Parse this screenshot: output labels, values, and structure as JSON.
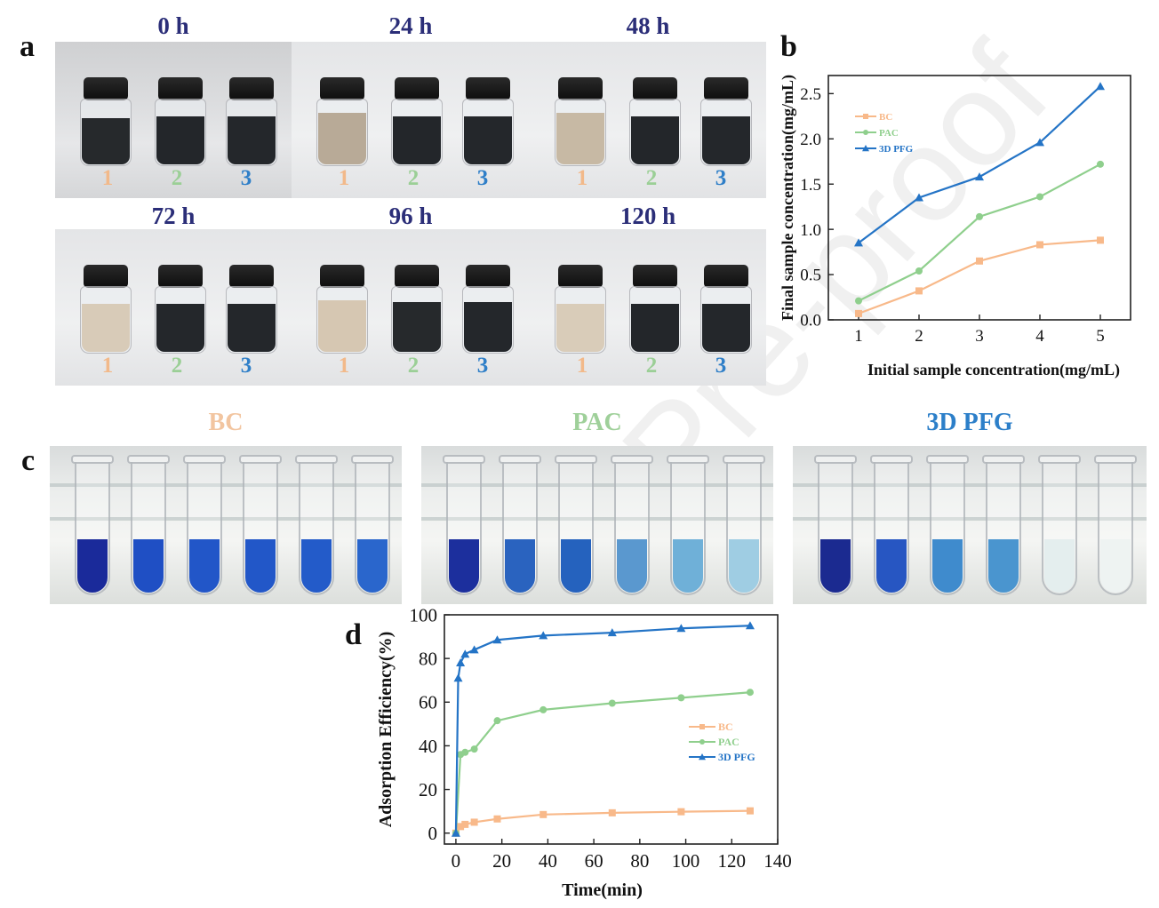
{
  "panel_letters": {
    "a": "a",
    "b": "b",
    "c": "c",
    "d": "d"
  },
  "panel_a": {
    "vial_labels": [
      "1",
      "2",
      "3"
    ],
    "photos": [
      {
        "time": "0 h"
      },
      {
        "time": "24 h"
      },
      {
        "time": "48 h"
      },
      {
        "time": "72 h"
      },
      {
        "time": "96 h"
      },
      {
        "time": "120 h"
      }
    ],
    "vial_number_colors": [
      "#f2b98a",
      "#9bcf96",
      "#2f7fc8"
    ]
  },
  "panel_c": {
    "groups": [
      {
        "label": "BC",
        "color": "#f2c5a0"
      },
      {
        "label": "PAC",
        "color": "#9fd09a"
      },
      {
        "label": "3D PFG",
        "color": "#2c7fc9"
      }
    ]
  },
  "watermark": "al Pre-proof",
  "colors": {
    "BC": "#f8b98a",
    "PAC": "#8fcf8d",
    "3D PFG": "#2474c6",
    "time_label": "#2b2e78"
  },
  "chart_data": [
    {
      "type": "line",
      "panel": "b",
      "xlabel": "Initial sample concentration(mg/mL)",
      "ylabel": "Final sample concentration(mg/mL)",
      "x": [
        1,
        2,
        3,
        4,
        5
      ],
      "xticks": [
        "1",
        "2",
        "3",
        "4",
        "5"
      ],
      "yticks": [
        "0.0",
        "0.5",
        "1.0",
        "1.5",
        "2.0",
        "2.5"
      ],
      "xlim": [
        0.5,
        5.5
      ],
      "ylim": [
        0,
        2.7
      ],
      "legend_position": "top-left",
      "series": [
        {
          "name": "BC",
          "marker": "square",
          "values": [
            0.07,
            0.32,
            0.65,
            0.83,
            0.88
          ]
        },
        {
          "name": "PAC",
          "marker": "circle",
          "values": [
            0.21,
            0.54,
            1.14,
            1.36,
            1.72
          ]
        },
        {
          "name": "3D PFG",
          "marker": "triangle",
          "values": [
            0.85,
            1.35,
            1.58,
            1.96,
            2.58
          ]
        }
      ]
    },
    {
      "type": "line",
      "panel": "d",
      "xlabel": "Time(min)",
      "ylabel": "Adsorption Efficiency(%)",
      "xticks": [
        "0",
        "20",
        "40",
        "60",
        "80",
        "100",
        "120",
        "140"
      ],
      "yticks": [
        "0",
        "20",
        "40",
        "60",
        "80",
        "100"
      ],
      "xlim": [
        -5,
        140
      ],
      "ylim": [
        -5,
        100
      ],
      "legend_position": "center-right",
      "series": [
        {
          "name": "BC",
          "marker": "square",
          "x": [
            0,
            2,
            4,
            8,
            18,
            38,
            68,
            98,
            128
          ],
          "values": [
            0,
            3,
            4,
            5,
            6.5,
            8.5,
            9.3,
            9.8,
            10.2
          ]
        },
        {
          "name": "PAC",
          "marker": "circle",
          "x": [
            0,
            2,
            4,
            8,
            18,
            38,
            68,
            98,
            128
          ],
          "values": [
            0,
            36,
            37,
            38.5,
            51.5,
            56.5,
            59.5,
            62,
            64.5
          ]
        },
        {
          "name": "3D PFG",
          "marker": "triangle",
          "x": [
            0,
            1,
            2,
            4,
            8,
            18,
            38,
            68,
            98,
            128
          ],
          "values": [
            0,
            71,
            78,
            82,
            84,
            88.5,
            90.5,
            91.8,
            93.8,
            95
          ]
        }
      ]
    }
  ]
}
